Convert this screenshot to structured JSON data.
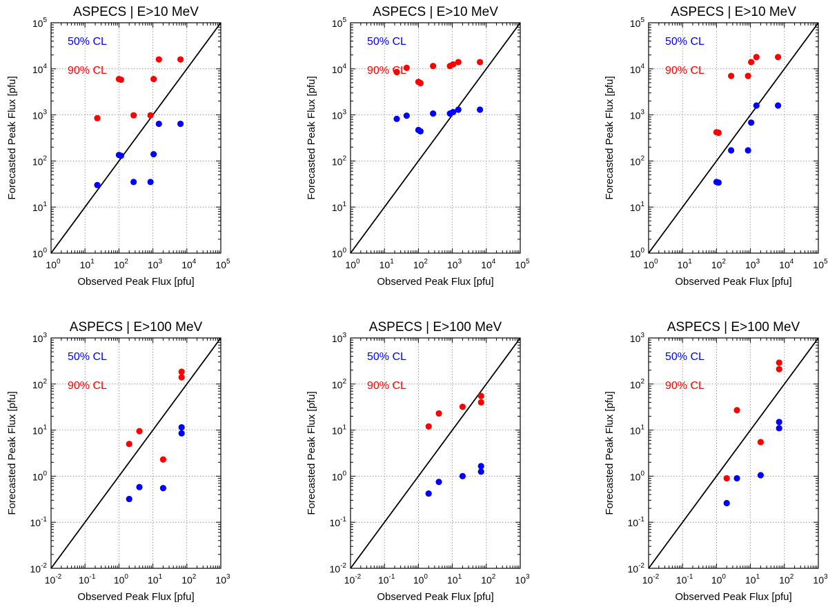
{
  "colors": {
    "series_50": "#0000ff",
    "series_90": "#ff0000",
    "diagonal": "#000000",
    "grid": "#888888",
    "axes": "#000000"
  },
  "chart_data": [
    {
      "type": "scatter",
      "title": "ASPECS | E>10 MeV",
      "xlabel": "Observed Peak Flux [pfu]",
      "ylabel": "Forecasted Peak Flux [pfu]",
      "xscale": "log",
      "yscale": "log",
      "xlim": [
        1,
        100000
      ],
      "ylim": [
        1,
        100000
      ],
      "xticks": [
        1,
        10,
        100,
        1000,
        10000,
        100000
      ],
      "yticks": [
        1,
        10,
        100,
        1000,
        10000,
        100000
      ],
      "grid": true,
      "diagonal": "y=x",
      "legend_placement": "top-left",
      "series": [
        {
          "name": "50% CL",
          "color": "#0000ff",
          "points": [
            [
              23,
              30
            ],
            [
              100,
              135
            ],
            [
              115,
              130
            ],
            [
              270,
              35
            ],
            [
              850,
              35
            ],
            [
              1050,
              140
            ],
            [
              1500,
              640
            ],
            [
              6500,
              640
            ]
          ]
        },
        {
          "name": "90% CL",
          "color": "#ff0000",
          "points": [
            [
              23,
              850
            ],
            [
              100,
              6000
            ],
            [
              115,
              5800
            ],
            [
              270,
              980
            ],
            [
              850,
              980
            ],
            [
              1050,
              6000
            ],
            [
              1500,
              16000
            ],
            [
              6500,
              16000
            ]
          ]
        }
      ]
    },
    {
      "type": "scatter",
      "title": "ASPECS | E>10 MeV",
      "xlabel": "Observed Peak Flux [pfu]",
      "ylabel": "Forecasted Peak Flux [pfu]",
      "xscale": "log",
      "yscale": "log",
      "xlim": [
        1,
        100000
      ],
      "ylim": [
        1,
        100000
      ],
      "xticks": [
        1,
        10,
        100,
        1000,
        10000,
        100000
      ],
      "yticks": [
        1,
        10,
        100,
        1000,
        10000,
        100000
      ],
      "grid": true,
      "diagonal": "y=x",
      "legend_placement": "top-left",
      "series": [
        {
          "name": "50% CL",
          "color": "#0000ff",
          "points": [
            [
              23,
              820
            ],
            [
              45,
              960
            ],
            [
              100,
              470
            ],
            [
              115,
              440
            ],
            [
              270,
              1070
            ],
            [
              850,
              1070
            ],
            [
              1050,
              1150
            ],
            [
              1500,
              1300
            ],
            [
              6500,
              1300
            ]
          ]
        },
        {
          "name": "90% CL",
          "color": "#ff0000",
          "points": [
            [
              23,
              8500
            ],
            [
              45,
              10500
            ],
            [
              100,
              5200
            ],
            [
              115,
              4900
            ],
            [
              270,
              11500
            ],
            [
              850,
              11500
            ],
            [
              1050,
              12500
            ],
            [
              1500,
              14000
            ],
            [
              6500,
              14000
            ]
          ]
        }
      ]
    },
    {
      "type": "scatter",
      "title": "ASPECS | E>10 MeV",
      "xlabel": "Observed Peak Flux [pfu]",
      "ylabel": "Forecasted Peak Flux [pfu]",
      "xscale": "log",
      "yscale": "log",
      "xlim": [
        1,
        100000
      ],
      "ylim": [
        1,
        100000
      ],
      "xticks": [
        1,
        10,
        100,
        1000,
        10000,
        100000
      ],
      "yticks": [
        1,
        10,
        100,
        1000,
        10000,
        100000
      ],
      "grid": true,
      "diagonal": "y=x",
      "legend_placement": "top-left",
      "series": [
        {
          "name": "50% CL",
          "color": "#0000ff",
          "points": [
            [
              100,
              35
            ],
            [
              115,
              34
            ],
            [
              270,
              170
            ],
            [
              850,
              170
            ],
            [
              1050,
              680
            ],
            [
              1500,
              1600
            ],
            [
              6500,
              1600
            ]
          ]
        },
        {
          "name": "90% CL",
          "color": "#ff0000",
          "points": [
            [
              100,
              420
            ],
            [
              115,
              410
            ],
            [
              270,
              7000
            ],
            [
              850,
              7000
            ],
            [
              1050,
              14000
            ],
            [
              1500,
              18000
            ],
            [
              6500,
              18000
            ]
          ]
        }
      ]
    },
    {
      "type": "scatter",
      "title": "ASPECS | E>100 MeV",
      "xlabel": "Observed Peak Flux [pfu]",
      "ylabel": "Forecasted Peak Flux [pfu]",
      "xscale": "log",
      "yscale": "log",
      "xlim": [
        0.01,
        1000
      ],
      "ylim": [
        0.01,
        1000
      ],
      "xticks": [
        0.01,
        0.1,
        1,
        10,
        100,
        1000
      ],
      "yticks": [
        0.01,
        0.1,
        1,
        10,
        100,
        1000
      ],
      "grid": true,
      "diagonal": "y=x",
      "legend_placement": "top-left",
      "series": [
        {
          "name": "50% CL",
          "color": "#0000ff",
          "points": [
            [
              2,
              0.32
            ],
            [
              4,
              0.58
            ],
            [
              20,
              0.55
            ],
            [
              70,
              11.5
            ],
            [
              70,
              8.5
            ]
          ]
        },
        {
          "name": "90% CL",
          "color": "#ff0000",
          "points": [
            [
              2,
              5
            ],
            [
              4,
              9.5
            ],
            [
              20,
              2.3
            ],
            [
              70,
              185
            ],
            [
              70,
              140
            ]
          ]
        }
      ]
    },
    {
      "type": "scatter",
      "title": "ASPECS | E>100 MeV",
      "xlabel": "Observed Peak Flux [pfu]",
      "ylabel": "Forecasted Peak Flux [pfu]",
      "xscale": "log",
      "yscale": "log",
      "xlim": [
        0.01,
        1000
      ],
      "ylim": [
        0.01,
        1000
      ],
      "xticks": [
        0.01,
        0.1,
        1,
        10,
        100,
        1000
      ],
      "yticks": [
        0.01,
        0.1,
        1,
        10,
        100,
        1000
      ],
      "grid": true,
      "diagonal": "y=x",
      "legend_placement": "top-left",
      "series": [
        {
          "name": "50% CL",
          "color": "#0000ff",
          "points": [
            [
              2,
              0.42
            ],
            [
              4,
              0.75
            ],
            [
              20,
              1.0
            ],
            [
              70,
              1.65
            ],
            [
              70,
              1.25
            ]
          ]
        },
        {
          "name": "90% CL",
          "color": "#ff0000",
          "points": [
            [
              2,
              12
            ],
            [
              4,
              23
            ],
            [
              20,
              32
            ],
            [
              70,
              55
            ],
            [
              70,
              40
            ]
          ]
        }
      ]
    },
    {
      "type": "scatter",
      "title": "ASPECS | E>100 MeV",
      "xlabel": "Observed Peak Flux [pfu]",
      "ylabel": "Forecasted Peak Flux [pfu]",
      "xscale": "log",
      "yscale": "log",
      "xlim": [
        0.01,
        1000
      ],
      "ylim": [
        0.01,
        1000
      ],
      "xticks": [
        0.01,
        0.1,
        1,
        10,
        100,
        1000
      ],
      "yticks": [
        0.01,
        0.1,
        1,
        10,
        100,
        1000
      ],
      "grid": true,
      "diagonal": "y=x",
      "legend_placement": "top-left",
      "series": [
        {
          "name": "50% CL",
          "color": "#0000ff",
          "points": [
            [
              2,
              0.26
            ],
            [
              4,
              0.9
            ],
            [
              20,
              1.05
            ],
            [
              70,
              15
            ],
            [
              70,
              11
            ]
          ]
        },
        {
          "name": "90% CL",
          "color": "#ff0000",
          "points": [
            [
              2,
              0.9
            ],
            [
              4,
              27
            ],
            [
              20,
              5.5
            ],
            [
              70,
              290
            ],
            [
              70,
              210
            ]
          ]
        }
      ]
    }
  ]
}
